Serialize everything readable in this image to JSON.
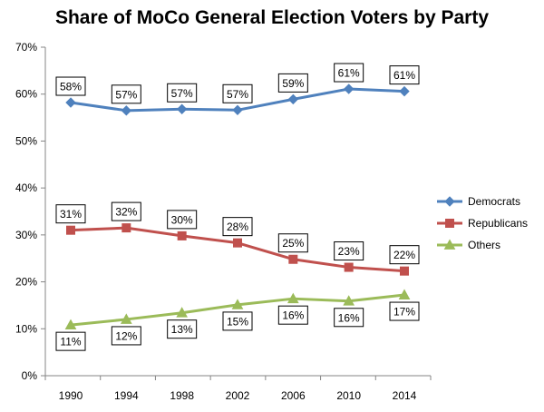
{
  "chart_data": {
    "type": "line",
    "title": "Share of MoCo General Election Voters by Party",
    "xlabel": "",
    "ylabel": "",
    "x": [
      "1990",
      "1994",
      "1998",
      "2002",
      "2006",
      "2010",
      "2014"
    ],
    "ylim": [
      0,
      70
    ],
    "yticks": [
      "0%",
      "10%",
      "20%",
      "30%",
      "40%",
      "50%",
      "60%",
      "70%"
    ],
    "grid": false,
    "legend_position": "right",
    "series": [
      {
        "name": "Democrats",
        "color": "#4f81bd",
        "marker": "diamond",
        "values": [
          58.2,
          56.5,
          56.8,
          56.6,
          58.9,
          61.1,
          60.6
        ],
        "labels": [
          "58%",
          "57%",
          "57%",
          "57%",
          "59%",
          "61%",
          "61%"
        ],
        "label_position": "above"
      },
      {
        "name": "Republicans",
        "color": "#c0504d",
        "marker": "square",
        "values": [
          31.0,
          31.5,
          29.8,
          28.3,
          24.8,
          23.1,
          22.3
        ],
        "labels": [
          "31%",
          "32%",
          "30%",
          "28%",
          "25%",
          "23%",
          "22%"
        ],
        "label_position": "above"
      },
      {
        "name": "Others",
        "color": "#9bbb59",
        "marker": "triangle",
        "values": [
          10.8,
          12.0,
          13.4,
          15.1,
          16.4,
          15.9,
          17.2
        ],
        "labels": [
          "11%",
          "12%",
          "13%",
          "15%",
          "16%",
          "16%",
          "17%"
        ],
        "label_position": "below"
      }
    ]
  }
}
